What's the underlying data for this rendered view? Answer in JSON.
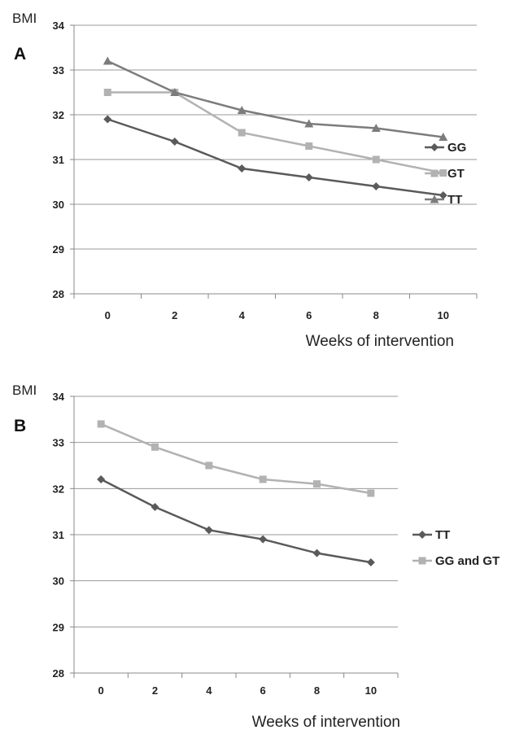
{
  "chart_data": [
    {
      "type": "line",
      "panel_label": "A",
      "ylabel": "BMI",
      "xlabel": "Weeks of intervention",
      "ylim": [
        28,
        34
      ],
      "yticks": [
        "28",
        "29",
        "30",
        "31",
        "32",
        "33",
        "34"
      ],
      "categories": [
        "0",
        "2",
        "4",
        "6",
        "8",
        "10"
      ],
      "grid": true,
      "legend_position": "right",
      "series": [
        {
          "name": "GG",
          "marker": "diamond",
          "color": "#5a5a5a",
          "values": [
            31.9,
            31.4,
            30.8,
            30.6,
            30.4,
            30.2
          ]
        },
        {
          "name": "GT",
          "marker": "square",
          "color": "#b2b2b2",
          "values": [
            32.5,
            32.5,
            31.6,
            31.3,
            31.0,
            30.7
          ]
        },
        {
          "name": "TT",
          "marker": "triangle",
          "color": "#7c7c7c",
          "values": [
            33.2,
            32.5,
            32.1,
            31.8,
            31.7,
            31.5
          ]
        }
      ]
    },
    {
      "type": "line",
      "panel_label": "B",
      "ylabel": "BMI",
      "xlabel": "Weeks of intervention",
      "ylim": [
        28,
        34
      ],
      "yticks": [
        "28",
        "29",
        "30",
        "31",
        "32",
        "33",
        "34"
      ],
      "categories": [
        "0",
        "2",
        "4",
        "6",
        "8",
        "10"
      ],
      "grid": true,
      "legend_position": "right",
      "series": [
        {
          "name": "TT",
          "marker": "diamond",
          "color": "#5a5a5a",
          "values": [
            32.2,
            31.6,
            31.1,
            30.9,
            30.6,
            30.4
          ]
        },
        {
          "name": "GG and GT",
          "marker": "square",
          "color": "#b2b2b2",
          "values": [
            33.4,
            32.9,
            32.5,
            32.2,
            32.1,
            31.9
          ]
        }
      ]
    }
  ]
}
